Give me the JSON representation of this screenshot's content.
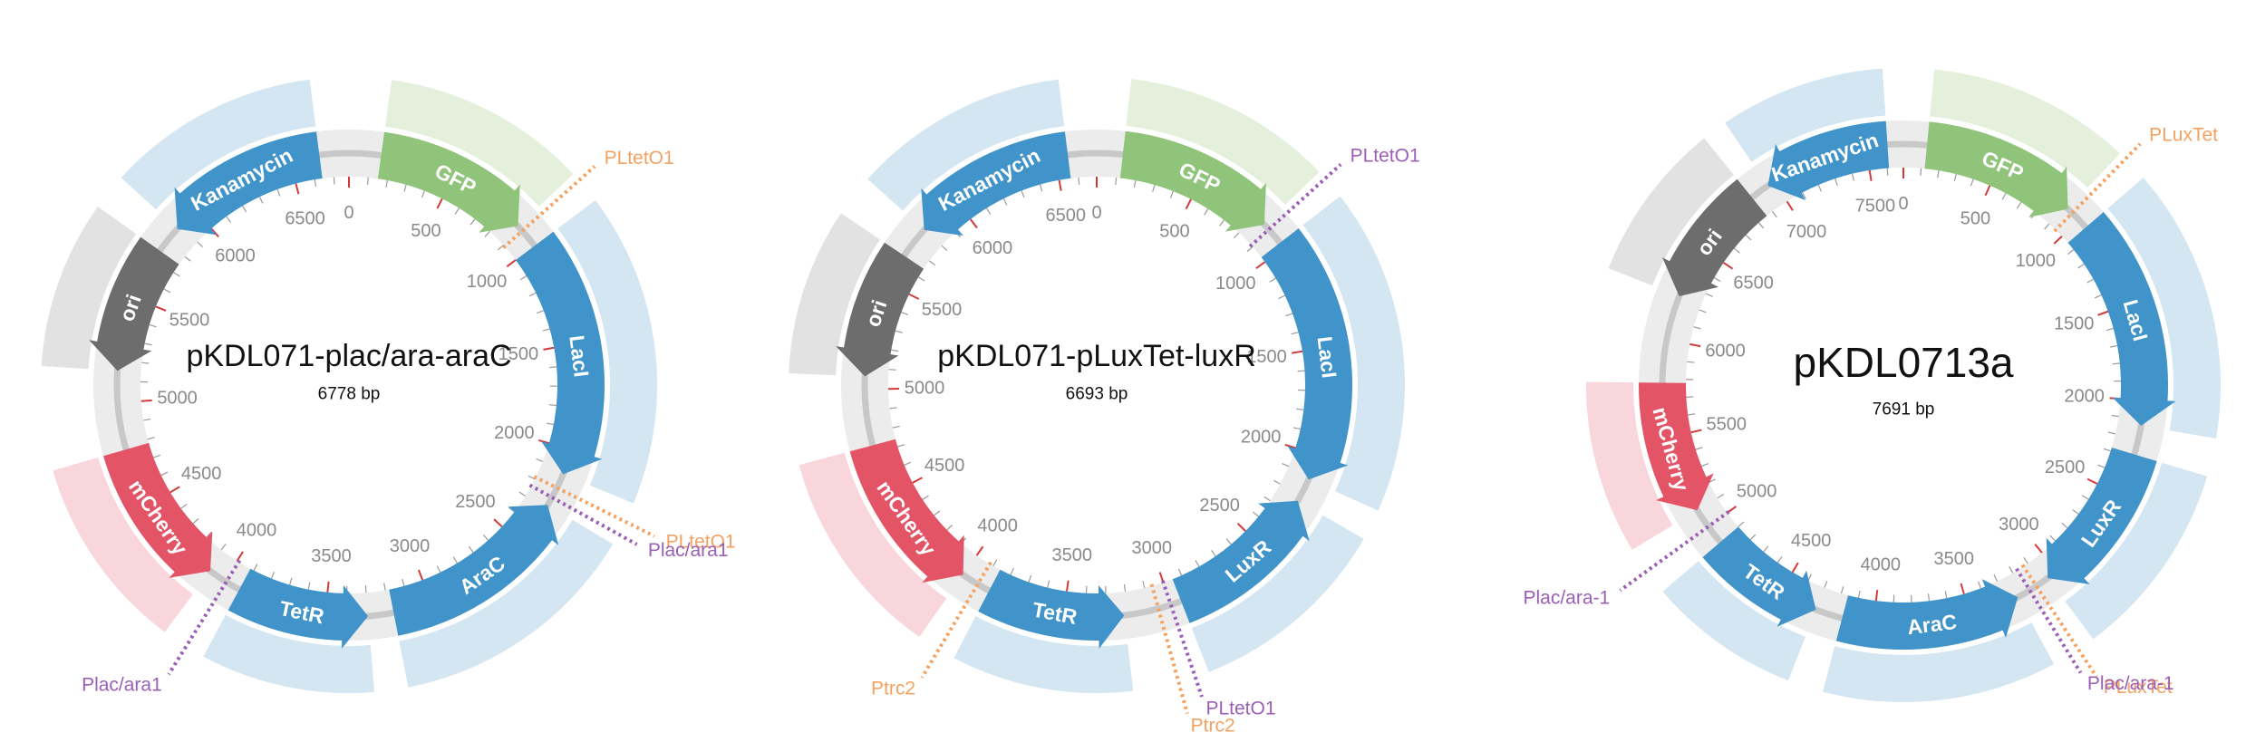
{
  "colors": {
    "backbone": "#ececec",
    "backbone_line": "#c8c8c8",
    "blue": "#4194c9",
    "green": "#90c47a",
    "gray": "#6d6d6d",
    "red": "#e35466",
    "band_blue": "#d4e6f2",
    "band_green": "#e5f0dc",
    "band_gray": "#e2e2e2",
    "band_red": "#f8d6db",
    "orange": "#f4a261",
    "purple": "#9b5fb5",
    "tick": "#9a9a9a",
    "tick_major": "#d23a3a"
  },
  "plasmids": [
    {
      "name": "pKDL071-plac/ara-araC",
      "length_label": "6778 bp",
      "length": 6778,
      "tick_labels": [
        "0",
        "500",
        "1000",
        "1500",
        "2000",
        "2500",
        "3000",
        "3500",
        "4000",
        "4500",
        "5000",
        "5500",
        "6000",
        "6500"
      ],
      "features": [
        {
          "label": "GFP",
          "start": 150,
          "end": 880,
          "strand": 1,
          "color": "green",
          "band": "band_green"
        },
        {
          "label": "LacI",
          "start": 1000,
          "end": 2120,
          "strand": 1,
          "color": "blue",
          "band": "band_blue"
        },
        {
          "label": "AraC",
          "start": 2280,
          "end": 3180,
          "strand": -1,
          "color": "blue",
          "band": "band_blue"
        },
        {
          "label": "TetR",
          "start": 3300,
          "end": 3920,
          "strand": -1,
          "color": "blue",
          "band": "band_blue"
        },
        {
          "label": "mCherry",
          "start": 4080,
          "end": 4780,
          "strand": -1,
          "color": "red",
          "band": "band_red"
        },
        {
          "label": "ori",
          "start": 5150,
          "end": 5750,
          "strand": -1,
          "color": "gray",
          "band": "band_gray"
        },
        {
          "label": "Kanamycin",
          "start": 5880,
          "end": 6640,
          "strand": -1,
          "color": "blue",
          "band": "band_blue"
        }
      ],
      "sites": [
        {
          "label": "PLtetO1",
          "position": 910,
          "color": "orange"
        },
        {
          "label": "PLtetO1",
          "position": 2190,
          "color": "orange"
        },
        {
          "label": "Plac/ara1",
          "position": 2240,
          "color": "purple"
        },
        {
          "label": "Plac/ara1",
          "position": 3990,
          "color": "purple"
        }
      ]
    },
    {
      "name": "pKDL071-pLuxTet-luxR",
      "length_label": "6693 bp",
      "length": 6693,
      "tick_labels": [
        "0",
        "500",
        "1000",
        "1500",
        "2000",
        "2500",
        "3000",
        "3500",
        "4000",
        "4500",
        "5000",
        "5500",
        "6000",
        "6500"
      ],
      "features": [
        {
          "label": "GFP",
          "start": 120,
          "end": 860,
          "strand": 1,
          "color": "green",
          "band": "band_green"
        },
        {
          "label": "LacI",
          "start": 970,
          "end": 2120,
          "strand": 1,
          "color": "blue",
          "band": "band_blue"
        },
        {
          "label": "LuxR",
          "start": 2230,
          "end": 2950,
          "strand": -1,
          "color": "blue",
          "band": "band_blue"
        },
        {
          "label": "TetR",
          "start": 3220,
          "end": 3860,
          "strand": -1,
          "color": "blue",
          "band": "band_blue"
        },
        {
          "label": "mCherry",
          "start": 4000,
          "end": 4740,
          "strand": -1,
          "color": "red",
          "band": "band_red"
        },
        {
          "label": "ori",
          "start": 5060,
          "end": 5650,
          "strand": -1,
          "color": "gray",
          "band": "band_gray"
        },
        {
          "label": "Kanamycin",
          "start": 5800,
          "end": 6560,
          "strand": -1,
          "color": "blue",
          "band": "band_blue"
        }
      ],
      "sites": [
        {
          "label": "PLtetO1",
          "position": 890,
          "color": "purple"
        },
        {
          "label": "Ptrc2",
          "position": 3060,
          "color": "orange"
        },
        {
          "label": "PLtetO1",
          "position": 3000,
          "color": "purple"
        },
        {
          "label": "Ptrc2",
          "position": 3920,
          "color": "orange"
        }
      ]
    },
    {
      "name": "pKDL0713a",
      "length_label": "7691 bp",
      "length": 7691,
      "tick_labels": [
        "0",
        "500",
        "1000",
        "1500",
        "2000",
        "2500",
        "3000",
        "3500",
        "4000",
        "4500",
        "5000",
        "5500",
        "6000",
        "6500",
        "7000",
        "7500"
      ],
      "features": [
        {
          "label": "GFP",
          "start": 120,
          "end": 920,
          "strand": 1,
          "color": "green",
          "band": "band_green"
        },
        {
          "label": "LacI",
          "start": 1050,
          "end": 2130,
          "strand": 1,
          "color": "blue",
          "band": "band_blue"
        },
        {
          "label": "LuxR",
          "start": 2280,
          "end": 3060,
          "strand": 1,
          "color": "blue",
          "band": "band_blue"
        },
        {
          "label": "AraC",
          "start": 3240,
          "end": 4160,
          "strand": -1,
          "color": "blue",
          "band": "band_blue"
        },
        {
          "label": "TetR",
          "start": 4300,
          "end": 4900,
          "strand": -1,
          "color": "blue",
          "band": "band_blue"
        },
        {
          "label": "mCherry",
          "start": 5100,
          "end": 5780,
          "strand": -1,
          "color": "red",
          "band": "band_red"
        },
        {
          "label": "ori",
          "start": 6230,
          "end": 6860,
          "strand": -1,
          "color": "gray",
          "band": "band_gray"
        },
        {
          "label": "Kanamycin",
          "start": 6960,
          "end": 7610,
          "strand": -1,
          "color": "blue",
          "band": "band_blue"
        }
      ],
      "sites": [
        {
          "label": "PLuxTet",
          "position": 950,
          "color": "orange"
        },
        {
          "label": "PLuxTet",
          "position": 3130,
          "color": "orange"
        },
        {
          "label": "Plac/ara-1",
          "position": 3170,
          "color": "purple"
        },
        {
          "label": "Plac/ara-1",
          "position": 5000,
          "color": "purple"
        }
      ]
    }
  ]
}
